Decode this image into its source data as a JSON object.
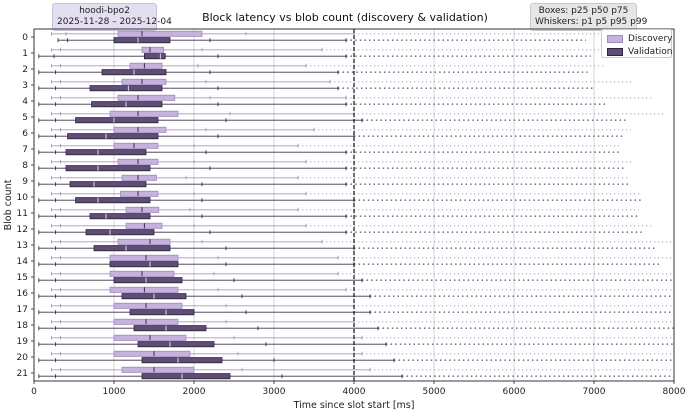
{
  "header": {
    "left_tag": {
      "line1": "hoodi-bpo2",
      "line2": "2025-11-28 – 2025-12-04"
    },
    "right_tag": {
      "line1": "Boxes: p25 p50 p75",
      "line2": "Whiskers: p1 p5 p95 p99"
    }
  },
  "chart_data": {
    "type": "box",
    "title": "Block latency vs blob count (discovery & validation)",
    "xlabel": "Time since slot start [ms]",
    "ylabel": "Blob count",
    "xlim": [
      0,
      8000
    ],
    "xticks": [
      0,
      1000,
      2000,
      3000,
      4000,
      5000,
      6000,
      7000,
      8000
    ],
    "categories": [
      "0",
      "1",
      "2",
      "3",
      "4",
      "5",
      "6",
      "7",
      "8",
      "9",
      "10",
      "11",
      "12",
      "13",
      "14",
      "15",
      "16",
      "17",
      "18",
      "19",
      "20",
      "21"
    ],
    "reference_line": {
      "x": 4000,
      "style": "dashed"
    },
    "grid": "vertical",
    "legend": {
      "position": "top-right",
      "entries": [
        "Discovery",
        "Validation"
      ]
    },
    "colors": {
      "Discovery": "#c5b3de",
      "Validation": "#5e4e75"
    },
    "series": [
      {
        "name": "Discovery",
        "color": "#c5b3de",
        "boxes": [
          {
            "p1": 220,
            "p5": 400,
            "p25": 1050,
            "p50": 1350,
            "p75": 2100,
            "p95": 2650,
            "p99": 4000
          },
          {
            "p1": 220,
            "p5": 330,
            "p25": 1350,
            "p50": 1450,
            "p75": 1620,
            "p95": 2100,
            "p99": 3600
          },
          {
            "p1": 220,
            "p5": 330,
            "p25": 1200,
            "p50": 1380,
            "p75": 1600,
            "p95": 2050,
            "p99": 3400
          },
          {
            "p1": 220,
            "p5": 330,
            "p25": 1100,
            "p50": 1350,
            "p75": 1650,
            "p95": 2150,
            "p99": 3700
          },
          {
            "p1": 220,
            "p5": 330,
            "p25": 1050,
            "p50": 1300,
            "p75": 1760,
            "p95": 2200,
            "p99": 3900
          },
          {
            "p1": 220,
            "p5": 330,
            "p25": 950,
            "p50": 1300,
            "p75": 1800,
            "p95": 2450,
            "p99": 4000
          },
          {
            "p1": 220,
            "p5": 330,
            "p25": 1000,
            "p50": 1300,
            "p75": 1650,
            "p95": 2150,
            "p99": 3500
          },
          {
            "p1": 220,
            "p5": 330,
            "p25": 1000,
            "p50": 1250,
            "p75": 1550,
            "p95": 2000,
            "p99": 3300
          },
          {
            "p1": 220,
            "p5": 330,
            "p25": 1050,
            "p50": 1300,
            "p75": 1550,
            "p95": 2000,
            "p99": 3400
          },
          {
            "p1": 220,
            "p5": 330,
            "p25": 1100,
            "p50": 1300,
            "p75": 1530,
            "p95": 1900,
            "p99": 3300
          },
          {
            "p1": 220,
            "p5": 330,
            "p25": 1080,
            "p50": 1300,
            "p75": 1550,
            "p95": 2000,
            "p99": 3400
          },
          {
            "p1": 220,
            "p5": 330,
            "p25": 1150,
            "p50": 1350,
            "p75": 1560,
            "p95": 1950,
            "p99": 3300
          },
          {
            "p1": 220,
            "p5": 330,
            "p25": 1150,
            "p50": 1380,
            "p75": 1600,
            "p95": 2000,
            "p99": 3400
          },
          {
            "p1": 220,
            "p5": 330,
            "p25": 1050,
            "p50": 1450,
            "p75": 1700,
            "p95": 2100,
            "p99": 3600
          },
          {
            "p1": 220,
            "p5": 330,
            "p25": 950,
            "p50": 1400,
            "p75": 1800,
            "p95": 2300,
            "p99": 3800
          },
          {
            "p1": 220,
            "p5": 330,
            "p25": 950,
            "p50": 1350,
            "p75": 1750,
            "p95": 2250,
            "p99": 3800
          },
          {
            "p1": 220,
            "p5": 330,
            "p25": 950,
            "p50": 1380,
            "p75": 1800,
            "p95": 2300,
            "p99": 3900
          },
          {
            "p1": 220,
            "p5": 330,
            "p25": 1000,
            "p50": 1400,
            "p75": 1850,
            "p95": 2400,
            "p99": 4000
          },
          {
            "p1": 220,
            "p5": 330,
            "p25": 1000,
            "p50": 1400,
            "p75": 1800,
            "p95": 2400,
            "p99": 4000
          },
          {
            "p1": 220,
            "p5": 330,
            "p25": 1000,
            "p50": 1450,
            "p75": 1900,
            "p95": 2500,
            "p99": 4100
          },
          {
            "p1": 220,
            "p5": 330,
            "p25": 1000,
            "p50": 1500,
            "p75": 1950,
            "p95": 2550,
            "p99": 4100
          },
          {
            "p1": 220,
            "p5": 330,
            "p25": 1100,
            "p50": 1500,
            "p75": 2000,
            "p95": 2600,
            "p99": 4200
          }
        ]
      },
      {
        "name": "Validation",
        "color": "#5e4e75",
        "boxes": [
          {
            "p1": 300,
            "p5": 420,
            "p25": 1000,
            "p50": 1300,
            "p75": 1700,
            "p95": 2200,
            "p99": 3900
          },
          {
            "p1": 60,
            "p5": 250,
            "p25": 1380,
            "p50": 1580,
            "p75": 1640,
            "p95": 2300,
            "p99": 3900
          },
          {
            "p1": 60,
            "p5": 270,
            "p25": 850,
            "p50": 1250,
            "p75": 1650,
            "p95": 2200,
            "p99": 3800
          },
          {
            "p1": 60,
            "p5": 270,
            "p25": 700,
            "p50": 1180,
            "p75": 1600,
            "p95": 2300,
            "p99": 3800
          },
          {
            "p1": 60,
            "p5": 270,
            "p25": 720,
            "p50": 1150,
            "p75": 1600,
            "p95": 2300,
            "p99": 3900
          },
          {
            "p1": 60,
            "p5": 270,
            "p25": 520,
            "p50": 1000,
            "p75": 1550,
            "p95": 2400,
            "p99": 4100
          },
          {
            "p1": 60,
            "p5": 270,
            "p25": 420,
            "p50": 900,
            "p75": 1550,
            "p95": 2300,
            "p99": 4000
          },
          {
            "p1": 60,
            "p5": 270,
            "p25": 400,
            "p50": 800,
            "p75": 1400,
            "p95": 2150,
            "p99": 3900
          },
          {
            "p1": 60,
            "p5": 270,
            "p25": 400,
            "p50": 800,
            "p75": 1450,
            "p95": 2200,
            "p99": 3900
          },
          {
            "p1": 60,
            "p5": 270,
            "p25": 450,
            "p50": 750,
            "p75": 1400,
            "p95": 2100,
            "p99": 3900
          },
          {
            "p1": 60,
            "p5": 270,
            "p25": 520,
            "p50": 800,
            "p75": 1450,
            "p95": 2100,
            "p99": 4000
          },
          {
            "p1": 60,
            "p5": 270,
            "p25": 700,
            "p50": 900,
            "p75": 1450,
            "p95": 2100,
            "p99": 3900
          },
          {
            "p1": 60,
            "p5": 270,
            "p25": 650,
            "p50": 950,
            "p75": 1500,
            "p95": 2200,
            "p99": 3900
          },
          {
            "p1": 60,
            "p5": 270,
            "p25": 750,
            "p50": 1150,
            "p75": 1700,
            "p95": 2400,
            "p99": 4000
          },
          {
            "p1": 60,
            "p5": 270,
            "p25": 950,
            "p50": 1450,
            "p75": 1800,
            "p95": 2400,
            "p99": 4000
          },
          {
            "p1": 60,
            "p5": 270,
            "p25": 1000,
            "p50": 1400,
            "p75": 1850,
            "p95": 2500,
            "p99": 4100
          },
          {
            "p1": 60,
            "p5": 270,
            "p25": 1100,
            "p50": 1500,
            "p75": 1900,
            "p95": 2600,
            "p99": 4200
          },
          {
            "p1": 60,
            "p5": 270,
            "p25": 1200,
            "p50": 1650,
            "p75": 2000,
            "p95": 2650,
            "p99": 4200
          },
          {
            "p1": 60,
            "p5": 270,
            "p25": 1250,
            "p50": 1650,
            "p75": 2150,
            "p95": 2800,
            "p99": 4300
          },
          {
            "p1": 60,
            "p5": 270,
            "p25": 1300,
            "p50": 1700,
            "p75": 2250,
            "p95": 2900,
            "p99": 4400
          },
          {
            "p1": 60,
            "p5": 270,
            "p25": 1350,
            "p50": 1800,
            "p75": 2350,
            "p95": 3000,
            "p99": 4500
          },
          {
            "p1": 60,
            "p5": 270,
            "p25": 1350,
            "p50": 1850,
            "p75": 2450,
            "p95": 3100,
            "p99": 4600
          }
        ]
      }
    ]
  }
}
